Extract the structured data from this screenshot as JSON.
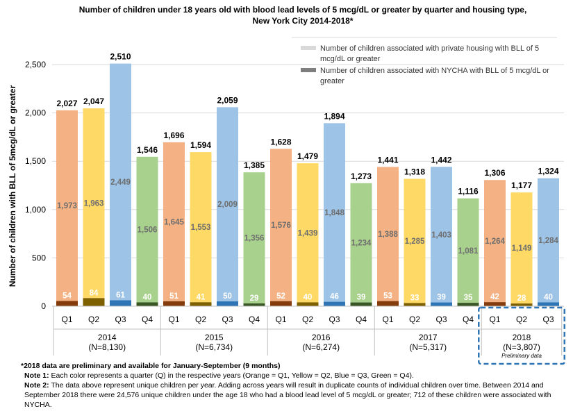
{
  "chart_data": {
    "type": "bar",
    "title_line1": "Number of children under 18 years old with blood lead levels of 5 mcg/dL or greater by quarter and housing type,",
    "title_line2": "New York City 2014-2018*",
    "ylabel": "Number of children with BLL of 5mcg/dL or greater",
    "ylim": [
      0,
      2500
    ],
    "yticks": [
      "0",
      "500",
      "1,000",
      "1,500",
      "2,000",
      "2,500"
    ],
    "ytick_values": [
      0,
      500,
      1000,
      1500,
      2000,
      2500
    ],
    "stacked": true,
    "legend": [
      {
        "key": "private",
        "label": "Number of children associated with private housing with BLL of 5 mcg/dL or greater",
        "color": "#d9d9d9"
      },
      {
        "key": "nycha",
        "label": "Number of children associated with NYCHA with BLL of 5 mcg/dL or greater",
        "color": "#7f7f7f"
      }
    ],
    "quarter_colors": {
      "Q1": {
        "light": "#f4b183",
        "dark": "#843c0c"
      },
      "Q2": {
        "light": "#ffd966",
        "dark": "#7f6000"
      },
      "Q3": {
        "light": "#9dc3e6",
        "dark": "#2e75b6"
      },
      "Q4": {
        "light": "#a9d18e",
        "dark": "#385723"
      }
    },
    "groups": [
      {
        "year": "2014",
        "n": "(N=8,130)",
        "bars": [
          {
            "q": "Q1",
            "total": 2027,
            "total_label": "2,027",
            "private": 1973,
            "private_label": "1,973",
            "nycha": 54,
            "nycha_label": "54"
          },
          {
            "q": "Q2",
            "total": 2047,
            "total_label": "2,047",
            "private": 1963,
            "private_label": "1,963",
            "nycha": 84,
            "nycha_label": "84"
          },
          {
            "q": "Q3",
            "total": 2510,
            "total_label": "2,510",
            "private": 2449,
            "private_label": "2,449",
            "nycha": 61,
            "nycha_label": "61"
          },
          {
            "q": "Q4",
            "total": 1546,
            "total_label": "1,546",
            "private": 1506,
            "private_label": "1,506",
            "nycha": 40,
            "nycha_label": "40"
          }
        ]
      },
      {
        "year": "2015",
        "n": "(N=6,734)",
        "bars": [
          {
            "q": "Q1",
            "total": 1696,
            "total_label": "1,696",
            "private": 1645,
            "private_label": "1,645",
            "nycha": 51,
            "nycha_label": "51"
          },
          {
            "q": "Q2",
            "total": 1594,
            "total_label": "1,594",
            "private": 1553,
            "private_label": "1,553",
            "nycha": 41,
            "nycha_label": "41"
          },
          {
            "q": "Q3",
            "total": 2059,
            "total_label": "2,059",
            "private": 2009,
            "private_label": "2,009",
            "nycha": 50,
            "nycha_label": "50"
          },
          {
            "q": "Q4",
            "total": 1385,
            "total_label": "1,385",
            "private": 1356,
            "private_label": "1,356",
            "nycha": 29,
            "nycha_label": "29"
          }
        ]
      },
      {
        "year": "2016",
        "n": "(N=6,274)",
        "bars": [
          {
            "q": "Q1",
            "total": 1628,
            "total_label": "1,628",
            "private": 1576,
            "private_label": "1,576",
            "nycha": 52,
            "nycha_label": "52"
          },
          {
            "q": "Q2",
            "total": 1479,
            "total_label": "1,479",
            "private": 1439,
            "private_label": "1,439",
            "nycha": 40,
            "nycha_label": "40"
          },
          {
            "q": "Q3",
            "total": 1894,
            "total_label": "1,894",
            "private": 1848,
            "private_label": "1,848",
            "nycha": 46,
            "nycha_label": "46"
          },
          {
            "q": "Q4",
            "total": 1273,
            "total_label": "1,273",
            "private": 1234,
            "private_label": "1,234",
            "nycha": 39,
            "nycha_label": "39"
          }
        ]
      },
      {
        "year": "2017",
        "n": "(N=5,317)",
        "bars": [
          {
            "q": "Q1",
            "total": 1441,
            "total_label": "1,441",
            "private": 1388,
            "private_label": "1,388",
            "nycha": 53,
            "nycha_label": "53"
          },
          {
            "q": "Q2",
            "total": 1318,
            "total_label": "1,318",
            "private": 1285,
            "private_label": "1,285",
            "nycha": 33,
            "nycha_label": "33"
          },
          {
            "q": "Q3",
            "total": 1442,
            "total_label": "1,442",
            "private": 1403,
            "private_label": "1,403",
            "nycha": 39,
            "nycha_label": "39"
          },
          {
            "q": "Q4",
            "total": 1116,
            "total_label": "1,116",
            "private": 1081,
            "private_label": "1,081",
            "nycha": 35,
            "nycha_label": "35"
          }
        ]
      },
      {
        "year": "2018",
        "n": "(N=3,807)",
        "preliminary": "Preliminary data",
        "bars": [
          {
            "q": "Q1",
            "total": 1306,
            "total_label": "1,306",
            "private": 1264,
            "private_label": "1,264",
            "nycha": 42,
            "nycha_label": "42"
          },
          {
            "q": "Q2",
            "total": 1177,
            "total_label": "1,177",
            "private": 1149,
            "private_label": "1,149",
            "nycha": 28,
            "nycha_label": "28"
          },
          {
            "q": "Q3",
            "total": 1324,
            "total_label": "1,324",
            "private": 1284,
            "private_label": "1,284",
            "nycha": 40,
            "nycha_label": "40"
          }
        ]
      }
    ]
  },
  "notes": {
    "footnote": "*2018 data are preliminary and available for January-September (9 months)",
    "note1_label": "Note 1:",
    "note1_text": " Each color represents a quarter (Q) in the respective years (Orange = Q1, Yellow = Q2, Blue = Q3, Green = Q4).",
    "note2_label": "Note 2:",
    "note2_text": " The data above represent unique children per year. Adding across years will result in duplicate counts of individual children over time. Between 2014 and September 2018 there were 24,576 unique children under the age 18 who had a blood lead level of 5 mcg/dL or greater; 712 of these children were associated with NYCHA."
  }
}
